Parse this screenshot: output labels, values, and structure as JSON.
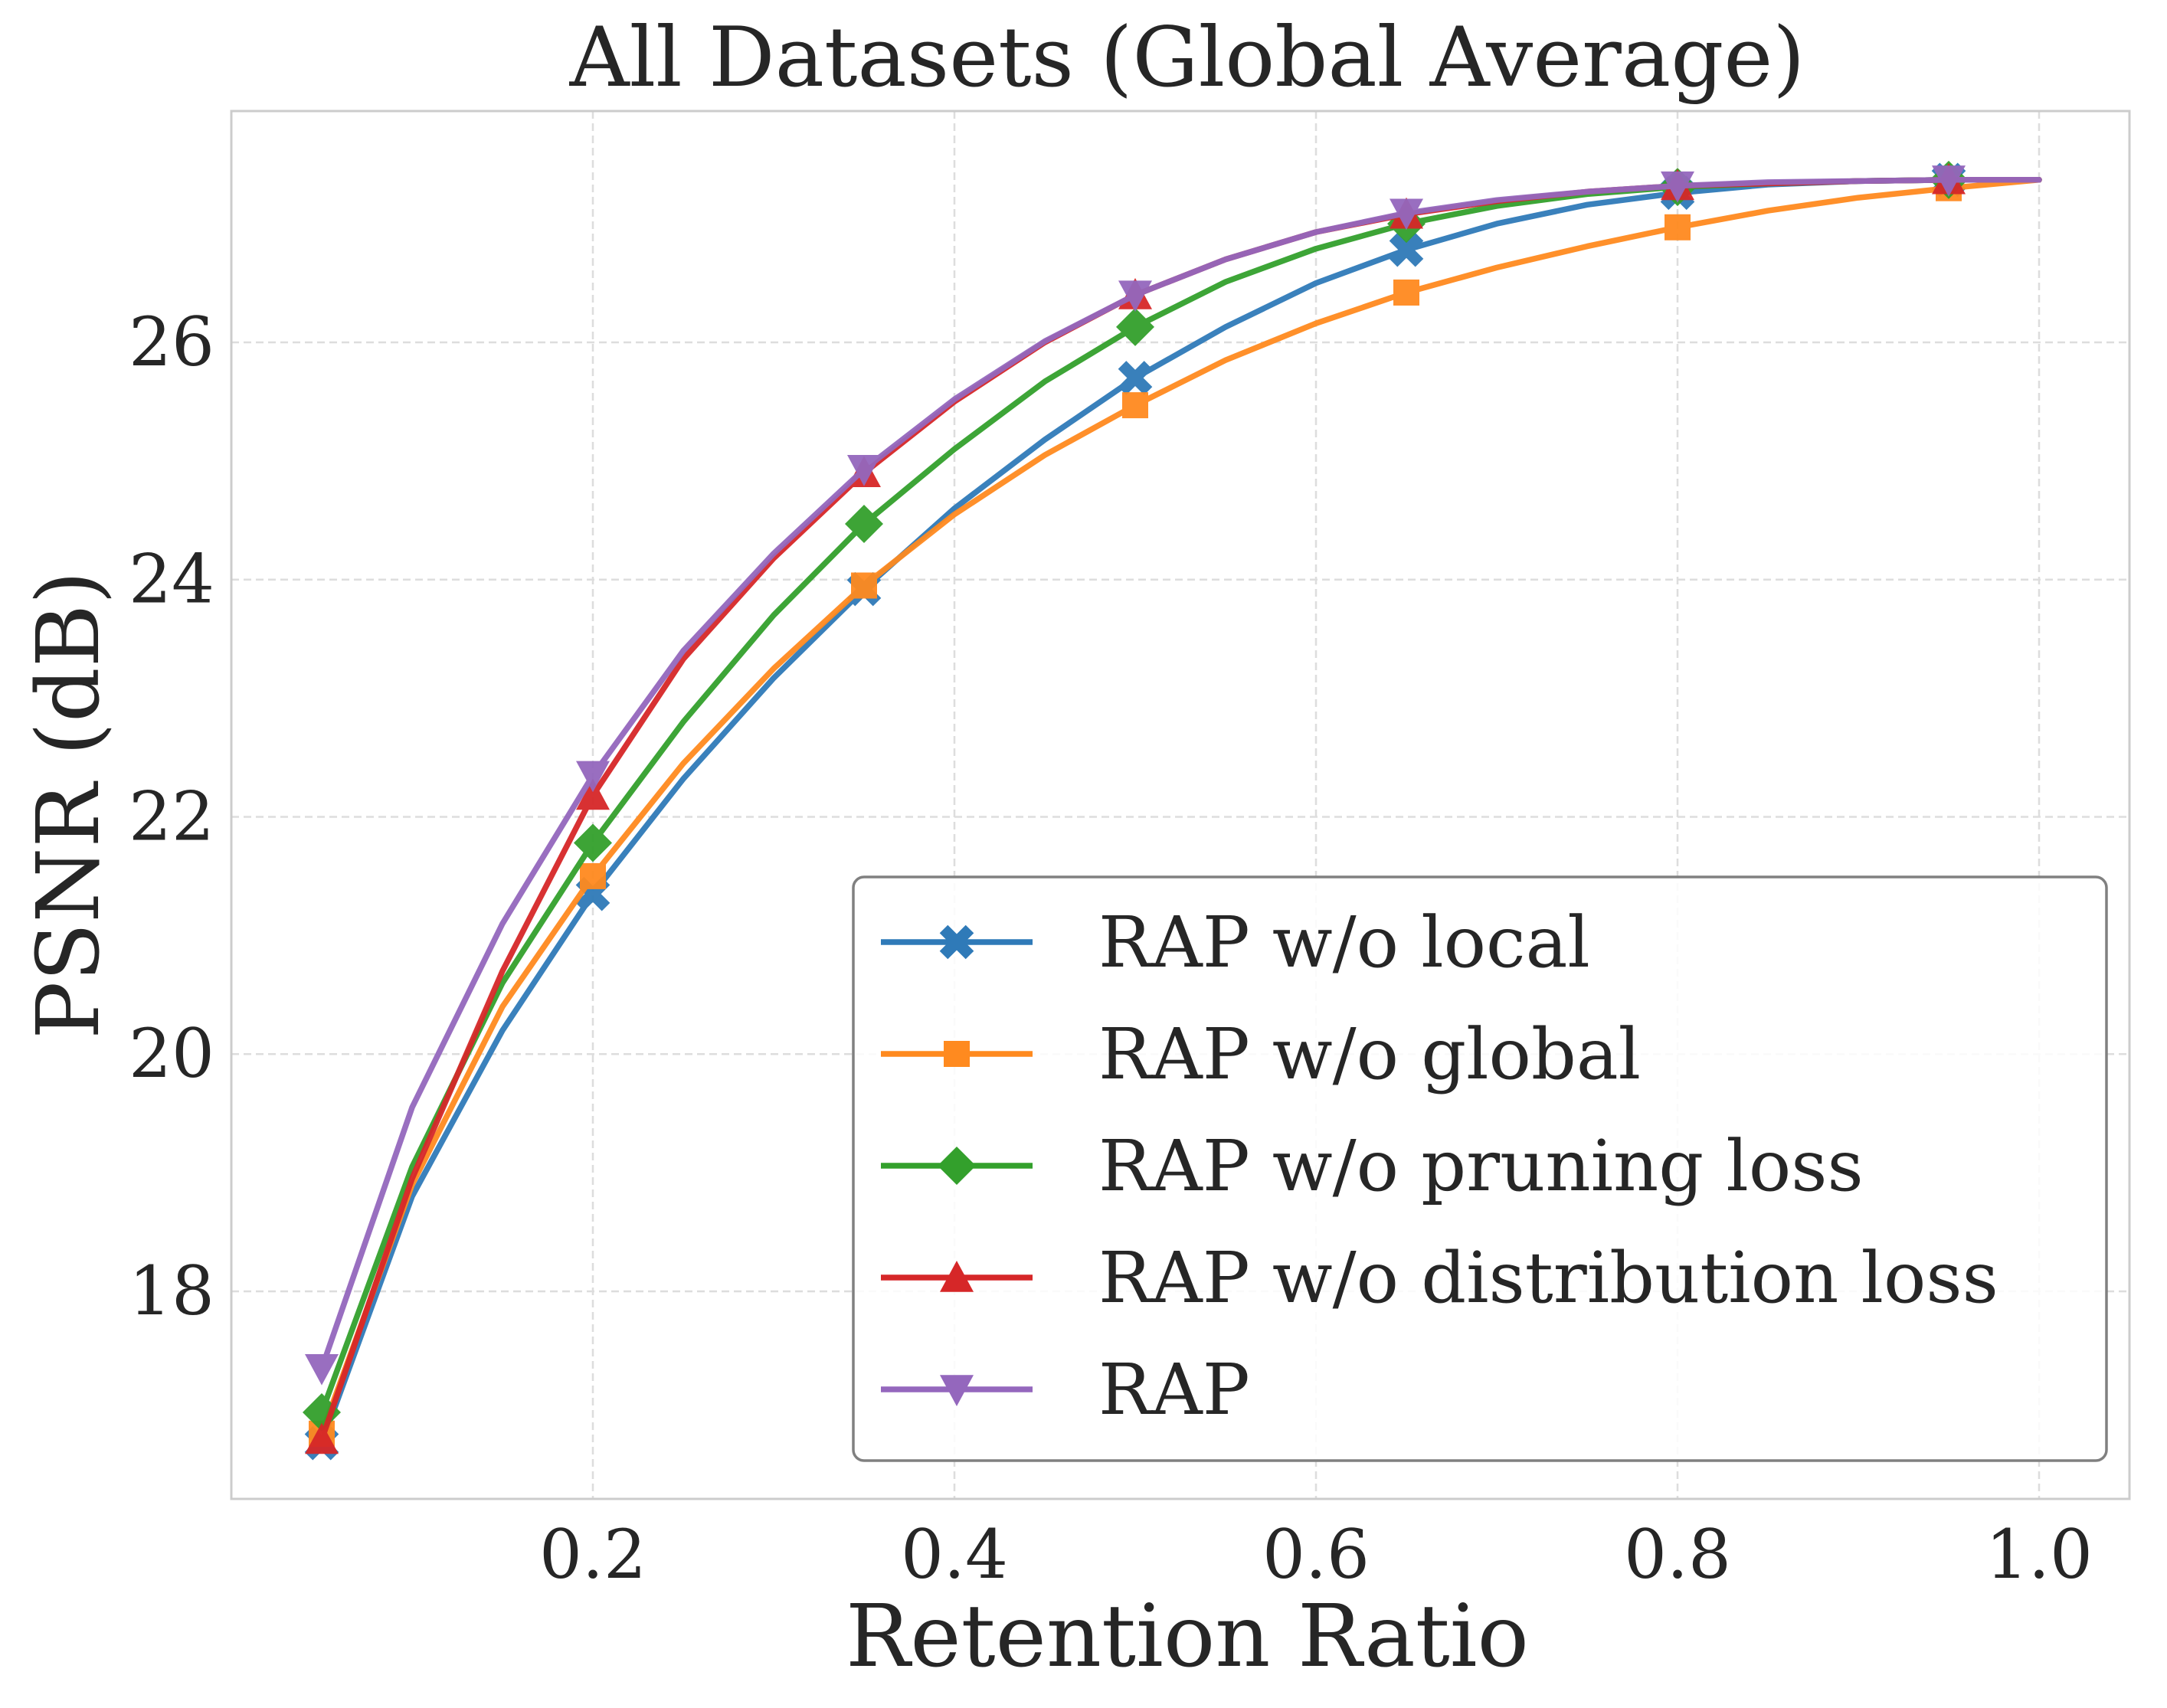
{
  "chart_data": {
    "type": "line",
    "title": "All Datasets (Global Average)",
    "xlabel": "Retention Ratio",
    "ylabel": "PSNR (dB)",
    "xlim": [
      0.0,
      1.05
    ],
    "ylim": [
      16.25,
      27.95
    ],
    "xticks": [
      0.2,
      0.4,
      0.6,
      0.8,
      1.0
    ],
    "xtick_labels": [
      "0.2",
      "0.4",
      "0.6",
      "0.8",
      "1.0"
    ],
    "yticks": [
      18,
      20,
      22,
      24,
      26
    ],
    "ytick_labels": [
      "18",
      "20",
      "22",
      "24",
      "26"
    ],
    "grid": true,
    "legend_position": "bottom-right",
    "x": [
      0.05,
      0.1,
      0.15,
      0.2,
      0.25,
      0.3,
      0.35,
      0.4,
      0.45,
      0.5,
      0.55,
      0.6,
      0.65,
      0.7,
      0.75,
      0.8,
      0.85,
      0.9,
      0.95,
      1.0
    ],
    "marker_x": [
      0.05,
      0.2,
      0.35,
      0.5,
      0.65,
      0.8,
      0.95
    ],
    "series": [
      {
        "name": "RAP w/o local",
        "color": "#2f7ab8",
        "marker": "x-filled",
        "values": [
          16.72,
          18.8,
          20.2,
          21.35,
          22.32,
          23.17,
          23.92,
          24.6,
          25.18,
          25.7,
          26.13,
          26.5,
          26.78,
          27.0,
          27.16,
          27.26,
          27.33,
          27.36,
          27.37,
          27.37
        ]
      },
      {
        "name": "RAP w/o global",
        "color": "#ff8a1f",
        "marker": "square",
        "values": [
          16.8,
          18.9,
          20.4,
          21.5,
          22.45,
          23.25,
          23.95,
          24.55,
          25.05,
          25.47,
          25.85,
          26.16,
          26.42,
          26.63,
          26.81,
          26.97,
          27.11,
          27.22,
          27.3,
          27.37
        ]
      },
      {
        "name": "RAP w/o pruning loss",
        "color": "#33a02c",
        "marker": "diamond",
        "values": [
          16.98,
          19.05,
          20.6,
          21.78,
          22.8,
          23.7,
          24.47,
          25.1,
          25.67,
          26.13,
          26.51,
          26.79,
          27.0,
          27.15,
          27.25,
          27.31,
          27.34,
          27.36,
          27.37,
          27.37
        ]
      },
      {
        "name": "RAP w/o distribution loss",
        "color": "#d62728",
        "marker": "triangle-up",
        "values": [
          16.75,
          18.95,
          20.7,
          22.18,
          23.33,
          24.18,
          24.9,
          25.5,
          26.0,
          26.4,
          26.7,
          26.93,
          27.08,
          27.19,
          27.27,
          27.32,
          27.34,
          27.36,
          27.37,
          27.37
        ]
      },
      {
        "name": "RAP",
        "color": "#9467bd",
        "marker": "triangle-down",
        "values": [
          17.35,
          19.55,
          21.1,
          22.35,
          23.4,
          24.22,
          24.93,
          25.52,
          26.01,
          26.4,
          26.7,
          26.93,
          27.09,
          27.2,
          27.27,
          27.32,
          27.35,
          27.36,
          27.37,
          27.37
        ]
      }
    ]
  }
}
